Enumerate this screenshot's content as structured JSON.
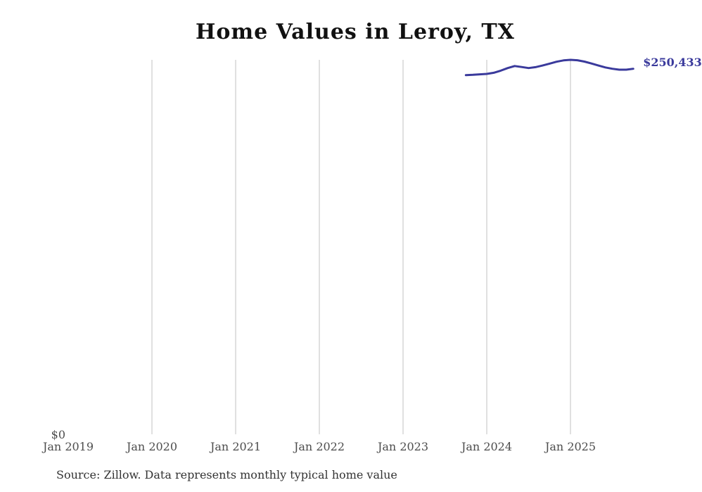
{
  "page": {
    "title": "Home Values in Leroy, TX",
    "source_note": "Source: Zillow. Data represents monthly typical home value"
  },
  "axes": {
    "y_zero_label": "$0"
  },
  "colors": {
    "background": "#ffffff",
    "title": "#111111",
    "line": "#3a3a9c",
    "end_label": "#3a3a9c",
    "gridline": "#cccccc",
    "axis_label": "#4d4d4d",
    "source": "#333333"
  },
  "chart_data": {
    "type": "line",
    "title": "Home Values in Leroy, TX",
    "xlabel": "",
    "ylabel": "",
    "ylim": [
      0,
      256500
    ],
    "grid": "vertical-only",
    "legend_position": "none",
    "end_label": "$250,433",
    "x_ticks": [
      {
        "label": "Jan 2019",
        "year": 2019,
        "gridline": false
      },
      {
        "label": "Jan 2020",
        "year": 2020,
        "gridline": true
      },
      {
        "label": "Jan 2021",
        "year": 2021,
        "gridline": true
      },
      {
        "label": "Jan 2022",
        "year": 2022,
        "gridline": true
      },
      {
        "label": "Jan 2023",
        "year": 2023,
        "gridline": true
      },
      {
        "label": "Jan 2024",
        "year": 2024,
        "gridline": true
      },
      {
        "label": "Jan 2025",
        "year": 2025,
        "gridline": true
      }
    ],
    "series": [
      {
        "name": "Monthly typical home value",
        "color": "#3a3a9c",
        "points": [
          {
            "date": "2023-10",
            "value": 246100
          },
          {
            "date": "2023-11",
            "value": 246300
          },
          {
            "date": "2023-12",
            "value": 246600
          },
          {
            "date": "2024-01",
            "value": 246900
          },
          {
            "date": "2024-02",
            "value": 247700
          },
          {
            "date": "2024-03",
            "value": 249100
          },
          {
            "date": "2024-04",
            "value": 250900
          },
          {
            "date": "2024-05",
            "value": 252300
          },
          {
            "date": "2024-06",
            "value": 251600
          },
          {
            "date": "2024-07",
            "value": 250900
          },
          {
            "date": "2024-08",
            "value": 251500
          },
          {
            "date": "2024-09",
            "value": 252600
          },
          {
            "date": "2024-10",
            "value": 253900
          },
          {
            "date": "2024-11",
            "value": 255200
          },
          {
            "date": "2024-12",
            "value": 256100
          },
          {
            "date": "2025-01",
            "value": 256500
          },
          {
            "date": "2025-02",
            "value": 256200
          },
          {
            "date": "2025-03",
            "value": 255300
          },
          {
            "date": "2025-04",
            "value": 254000
          },
          {
            "date": "2025-05",
            "value": 252600
          },
          {
            "date": "2025-06",
            "value": 251300
          },
          {
            "date": "2025-07",
            "value": 250400
          },
          {
            "date": "2025-08",
            "value": 249800
          },
          {
            "date": "2025-09",
            "value": 249800
          },
          {
            "date": "2025-10",
            "value": 250433
          }
        ]
      }
    ]
  }
}
